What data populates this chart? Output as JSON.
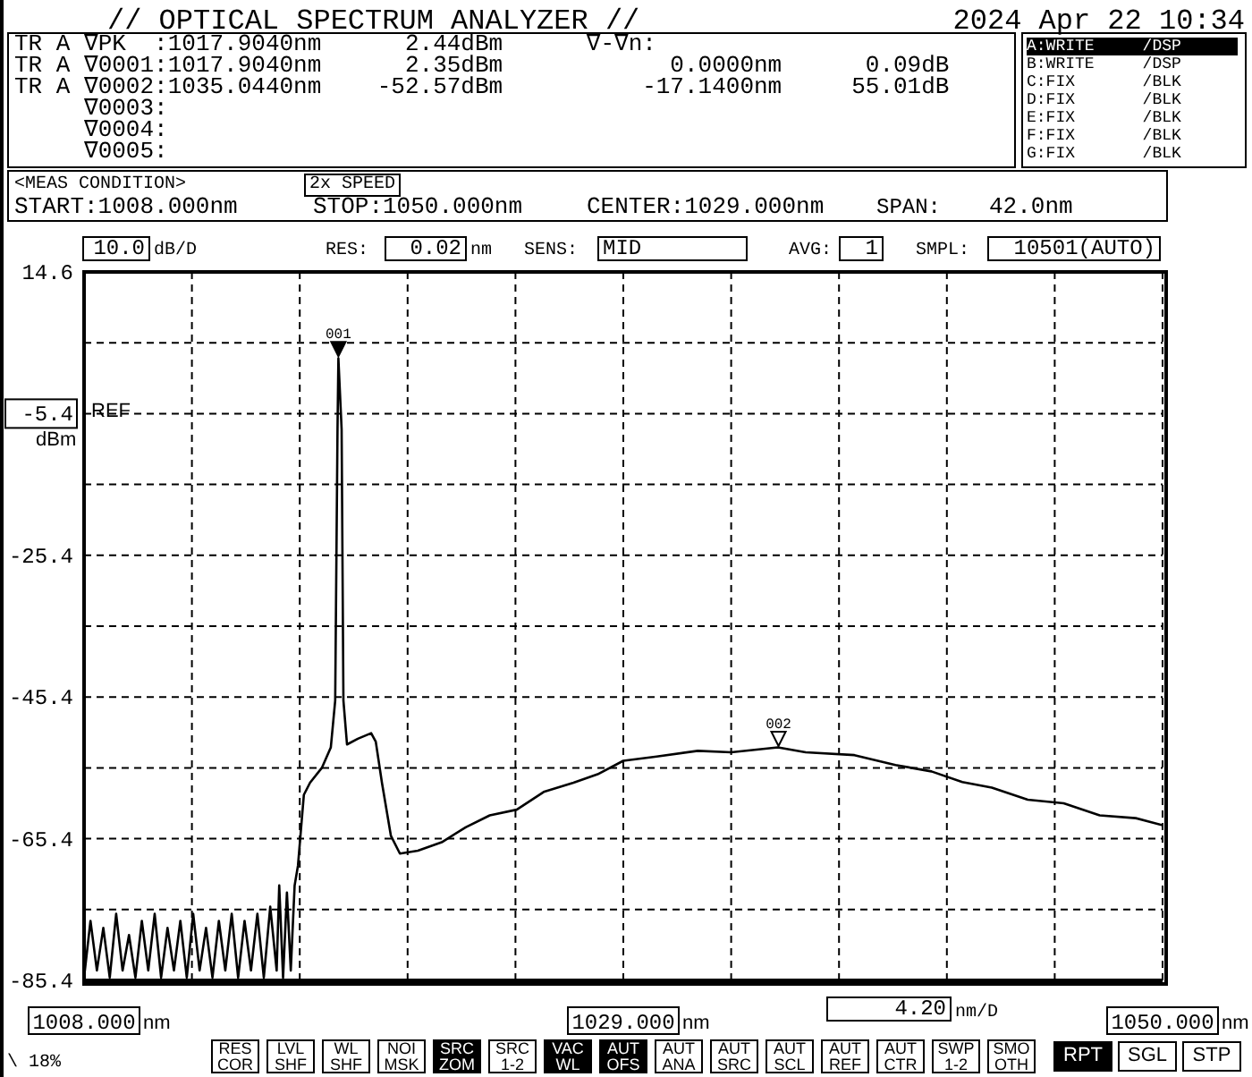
{
  "chart_data": {
    "type": "line",
    "title": "// OPTICAL SPECTRUM ANALYZER //",
    "subtitle": "2024 Apr 22 10:34",
    "xlabel": "nm",
    "ylabel": "dBm",
    "annotations": [
      "TR A ∇PK  :1017.9040nm      2.44dBm      ∇-∇n:",
      "TR A ∇0001:1017.9040nm      2.35dBm            0.0000nm      0.09dB",
      "TR A ∇0002:1035.0440nm    -52.57dBm          -17.1400nm     55.01dB",
      "     ∇0003:",
      "     ∇0004:",
      "     ∇0005:",
      "A:WRITE     /DSP",
      "B:WRITE     /DSP",
      "C:FIX       /BLK",
      "D:FIX       /BLK",
      "E:FIX       /BLK",
      "F:FIX       /BLK",
      "G:FIX       /BLK",
      "<MEAS CONDITION>",
      "2x SPEED",
      "START:1008.000nm",
      "STOP:1050.000nm",
      "CENTER:1029.000nm",
      "SPAN:",
      "42.0nm",
      "10.0",
      "dB/D",
      "RES:",
      "0.02",
      "nm",
      "SENS:",
      "MID",
      "AVG:",
      "1",
      "SMPL:",
      "10501(AUTO)",
      "4.20",
      "nm/D",
      "\\ 18%",
      "RES COR",
      "LVL SHF",
      "WL SHF",
      "NOI MSK",
      "SRC ZOM",
      "SRC 1-2",
      "VAC WL",
      "AUT OFS",
      "AUT ANA",
      "AUT SRC",
      "AUT SCL",
      "AUT REF",
      "AUT CTR",
      "SWP 1-2",
      "SMO OTH",
      "RPT",
      "SGL",
      "STP",
      "REF",
      {
        "text": "001",
        "x": 1017.904,
        "y": 2.44
      },
      {
        "text": "002",
        "x": 1035.044,
        "y": -52.57
      }
    ],
    "x": [
      1008,
      1008.25,
      1008.5,
      1008.75,
      1009,
      1009.25,
      1009.5,
      1009.75,
      1010,
      1010.25,
      1010.5,
      1010.75,
      1011,
      1011.25,
      1011.5,
      1011.75,
      1012,
      1012.25,
      1012.5,
      1012.75,
      1013,
      1013.25,
      1013.5,
      1013.75,
      1014,
      1014.25,
      1014.5,
      1014.75,
      1015,
      1015.25,
      1015.5,
      1015.6,
      1015.75,
      1015.9,
      1016.05,
      1016.2,
      1016.33,
      1016.56,
      1016.8,
      1017.26,
      1017.61,
      1017.78,
      1017.87,
      1017.904,
      1018.03,
      1018.1,
      1018.24,
      1018.66,
      1019.18,
      1019.36,
      1019.6,
      1019.95,
      1020.3,
      1021,
      1021.93,
      1022.86,
      1023.8,
      1024.85,
      1025.9,
      1027.06,
      1028,
      1029,
      1030.3,
      1031.9,
      1033.2,
      1035.02,
      1036.1,
      1038,
      1039.6,
      1041,
      1042.2,
      1043.35,
      1044.75,
      1046.15,
      1047.55,
      1048.95,
      1050
    ],
    "series": [
      {
        "color": "#000000",
        "values": [
          -85,
          -77,
          -84,
          -78,
          -85,
          -76,
          -84,
          -79,
          -85,
          -77,
          -84,
          -76,
          -85,
          -78,
          -84,
          -77,
          -85,
          -76,
          -84,
          -78,
          -85,
          -77,
          -84,
          -76,
          -85,
          -77,
          -84,
          -76,
          -85,
          -75,
          -84,
          -72,
          -85,
          -73,
          -84,
          -72,
          -69.2,
          -59.2,
          -57.5,
          -55.4,
          -52.5,
          -45.9,
          -7.6,
          2.4,
          -7.6,
          -45.9,
          -52.1,
          -51.3,
          -50.5,
          -51.7,
          -57.5,
          -65,
          -67.5,
          -67.1,
          -65.9,
          -63.8,
          -62.1,
          -61.3,
          -58.8,
          -57.5,
          -56.3,
          -54.4,
          -53.8,
          -53,
          -53.2,
          -52.5,
          -53.2,
          -53.6,
          -55,
          -55.9,
          -57.4,
          -58.2,
          -59.9,
          -60.4,
          -62.1,
          -62.5,
          -63.5
        ]
      }
    ],
    "xlim": [
      1008,
      1050
    ],
    "xticks": [
      {
        "value": 1008,
        "label": "1008.000"
      },
      {
        "value": 1012.2,
        "label": null
      },
      {
        "value": 1016.4,
        "label": null
      },
      {
        "value": 1020.6,
        "label": null
      },
      {
        "value": 1024.8,
        "label": null
      },
      {
        "value": 1029,
        "label": "1029.000"
      },
      {
        "value": 1033.2,
        "label": null
      },
      {
        "value": 1037.4,
        "label": null
      },
      {
        "value": 1041.6,
        "label": null
      },
      {
        "value": 1045.8,
        "label": null
      },
      {
        "value": 1050,
        "label": "1050.000"
      }
    ],
    "ylim": [
      -85.4,
      14.6
    ],
    "yticks": [
      -85.4,
      {
        "value": -75.4,
        "label": null
      },
      -65.4,
      {
        "value": -55.4,
        "label": null
      },
      -45.4,
      {
        "value": -35.4,
        "label": null
      },
      -25.4,
      {
        "value": -15.4,
        "label": null
      },
      -5.4,
      {
        "value": 4.6,
        "label": null
      },
      14.6
    ],
    "grid": true,
    "marker": "none",
    "line_style": "solid"
  }
}
